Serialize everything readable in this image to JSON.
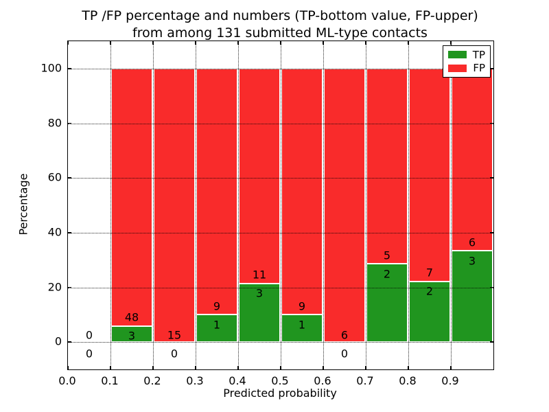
{
  "title": {
    "line1": "TP /FP percentage and numbers (TP-bottom value, FP-upper)",
    "line2": "from among 131 submitted ML-type contacts"
  },
  "legend": {
    "items": [
      {
        "label": "TP",
        "color": "#20951f"
      },
      {
        "label": "FP",
        "color": "#f92b2b"
      }
    ]
  },
  "chart_data": {
    "type": "bar",
    "stacked": true,
    "title": "TP /FP percentage and numbers (TP-bottom value, FP-upper) from among 131 submitted ML-type contacts",
    "xlabel": "Predicted probability",
    "ylabel": "Percentage",
    "xlim": [
      0.0,
      1.0
    ],
    "ylim": [
      -10,
      110
    ],
    "x_tick_values": [
      0.0,
      0.1,
      0.2,
      0.3,
      0.4,
      0.5,
      0.6,
      0.7,
      0.8,
      0.9
    ],
    "x_tick_labels": [
      "0.0",
      "0.1",
      "0.2",
      "0.3",
      "0.4",
      "0.5",
      "0.6",
      "0.7",
      "0.8",
      "0.9"
    ],
    "y_tick_values": [
      0,
      20,
      40,
      60,
      80,
      100
    ],
    "y_tick_labels": [
      "0",
      "20",
      "40",
      "60",
      "80",
      "100"
    ],
    "grid": "dotted",
    "legend_position": "upper right",
    "series_names": [
      "TP",
      "FP"
    ],
    "colors": {
      "tp": "#20951f",
      "fp": "#f92b2b",
      "edge": "#ffffff"
    },
    "bin_width": 0.1,
    "bins": [
      {
        "x_start": 0.0,
        "x_end": 0.1,
        "tp": 0,
        "fp": 0,
        "tp_pct": 0.0,
        "fp_pct": 0.0
      },
      {
        "x_start": 0.1,
        "x_end": 0.2,
        "tp": 3,
        "fp": 48,
        "tp_pct": 5.88,
        "fp_pct": 94.12
      },
      {
        "x_start": 0.2,
        "x_end": 0.3,
        "tp": 0,
        "fp": 15,
        "tp_pct": 0.0,
        "fp_pct": 100.0
      },
      {
        "x_start": 0.3,
        "x_end": 0.4,
        "tp": 1,
        "fp": 9,
        "tp_pct": 10.0,
        "fp_pct": 90.0
      },
      {
        "x_start": 0.4,
        "x_end": 0.5,
        "tp": 3,
        "fp": 11,
        "tp_pct": 21.43,
        "fp_pct": 78.57
      },
      {
        "x_start": 0.5,
        "x_end": 0.6,
        "tp": 1,
        "fp": 9,
        "tp_pct": 10.0,
        "fp_pct": 90.0
      },
      {
        "x_start": 0.6,
        "x_end": 0.7,
        "tp": 0,
        "fp": 6,
        "tp_pct": 0.0,
        "fp_pct": 100.0
      },
      {
        "x_start": 0.7,
        "x_end": 0.8,
        "tp": 2,
        "fp": 5,
        "tp_pct": 28.57,
        "fp_pct": 71.43
      },
      {
        "x_start": 0.8,
        "x_end": 0.9,
        "tp": 2,
        "fp": 7,
        "tp_pct": 22.22,
        "fp_pct": 77.78
      },
      {
        "x_start": 0.9,
        "x_end": 1.0,
        "tp": 3,
        "fp": 6,
        "tp_pct": 33.33,
        "fp_pct": 66.67
      }
    ]
  }
}
